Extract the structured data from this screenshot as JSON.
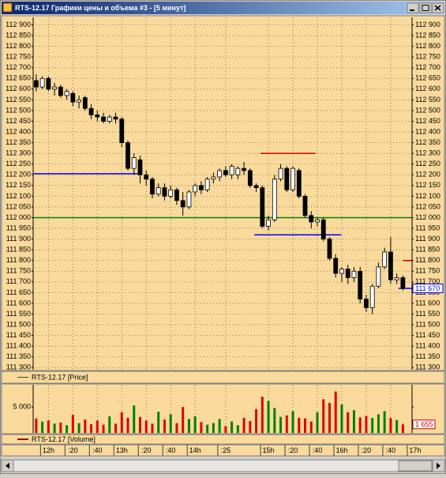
{
  "window": {
    "title": "RTS-12.17 Графики цены и объема #3 - [5 минут]"
  },
  "chart_data": [
    {
      "type": "candlestick",
      "legend": "RTS-12.17 [Price]",
      "open": [
        112640,
        112610,
        112650,
        112600,
        112610,
        112570,
        112580,
        112540,
        112560,
        112510,
        112480,
        112470,
        112450,
        112470,
        112460,
        112350,
        112230,
        112270,
        112200,
        112180,
        112110,
        112140,
        112100,
        112130,
        112080,
        112050,
        112120,
        112150,
        112130,
        112180,
        112190,
        112220,
        112200,
        112200,
        112230,
        112220,
        112150,
        112140,
        111960,
        111990,
        112180,
        112230,
        112130,
        112220,
        112100,
        112010,
        111980,
        111990,
        111900,
        111810,
        111740,
        111760,
        111720,
        111750,
        111620,
        111580,
        111680,
        111770,
        111840,
        111710,
        111720
      ],
      "high": [
        112670,
        112660,
        112660,
        112630,
        112620,
        112600,
        112590,
        112570,
        112570,
        112530,
        112500,
        112490,
        112480,
        112490,
        112470,
        112360,
        112300,
        112290,
        112220,
        112190,
        112160,
        112160,
        112150,
        112140,
        112120,
        112130,
        112160,
        112170,
        112190,
        112210,
        112230,
        112240,
        112250,
        112240,
        112260,
        112230,
        112160,
        112150,
        112010,
        112200,
        112250,
        112240,
        112240,
        112230,
        112110,
        112030,
        112000,
        112000,
        111910,
        111830,
        111770,
        111780,
        111770,
        111770,
        111640,
        111690,
        111790,
        111860,
        111910,
        111740,
        111730
      ],
      "low": [
        112590,
        112600,
        112590,
        112570,
        112560,
        112550,
        112520,
        112510,
        112500,
        112460,
        112450,
        112440,
        112440,
        112440,
        112330,
        112220,
        112200,
        112160,
        112150,
        112090,
        112100,
        112080,
        112090,
        112060,
        112010,
        112040,
        112100,
        112110,
        112120,
        112160,
        112170,
        112190,
        112180,
        112180,
        112200,
        112140,
        112120,
        111950,
        111940,
        111980,
        112170,
        112120,
        112120,
        112090,
        112000,
        111950,
        111960,
        111890,
        111800,
        111720,
        111700,
        111690,
        111700,
        111600,
        111560,
        111550,
        111670,
        111760,
        111690,
        111690,
        111660
      ],
      "close": [
        112610,
        112650,
        112600,
        112610,
        112570,
        112590,
        112540,
        112550,
        112510,
        112480,
        112470,
        112450,
        112470,
        112460,
        112350,
        112230,
        112280,
        112200,
        112180,
        112110,
        112140,
        112100,
        112130,
        112080,
        112050,
        112120,
        112150,
        112130,
        112180,
        112190,
        112220,
        112200,
        112240,
        112230,
        112220,
        112150,
        112140,
        111960,
        111990,
        112180,
        112230,
        112130,
        112230,
        112100,
        112010,
        111980,
        111990,
        111900,
        111810,
        111740,
        111760,
        111720,
        111750,
        111620,
        111580,
        111680,
        111770,
        111840,
        111710,
        111720,
        111670
      ],
      "up_color": "#ffffff",
      "down_color": "#000000",
      "background": "#f9da9c",
      "xlim": [
        -0.5,
        61.5
      ],
      "ylim": [
        111290,
        112935
      ],
      "yticks": [
        {
          "value": 111300,
          "label": "111 300"
        },
        {
          "value": 111350,
          "label": "111 350"
        },
        {
          "value": 111400,
          "label": "111 400"
        },
        {
          "value": 111450,
          "label": "111 450"
        },
        {
          "value": 111500,
          "label": "111 500"
        },
        {
          "value": 111550,
          "label": "111 550"
        },
        {
          "value": 111600,
          "label": "111 600"
        },
        {
          "value": 111650,
          "label": "111 650"
        },
        {
          "value": 111700,
          "label": "111 700"
        },
        {
          "value": 111750,
          "label": "111 750"
        },
        {
          "value": 111800,
          "label": "111 800"
        },
        {
          "value": 111850,
          "label": "111 850"
        },
        {
          "value": 111900,
          "label": "111 900"
        },
        {
          "value": 111950,
          "label": "111 950"
        },
        {
          "value": 112000,
          "label": "112 000"
        },
        {
          "value": 112050,
          "label": "112 050"
        },
        {
          "value": 112100,
          "label": "112 100"
        },
        {
          "value": 112150,
          "label": "112 150"
        },
        {
          "value": 112200,
          "label": "112 200"
        },
        {
          "value": 112250,
          "label": "112 250"
        },
        {
          "value": 112300,
          "label": "112 300"
        },
        {
          "value": 112350,
          "label": "112 350"
        },
        {
          "value": 112400,
          "label": "112 400"
        },
        {
          "value": 112450,
          "label": "112 450"
        },
        {
          "value": 112500,
          "label": "112 500"
        },
        {
          "value": 112550,
          "label": "112 550"
        },
        {
          "value": 112600,
          "label": "112 600"
        },
        {
          "value": 112650,
          "label": "112 650"
        },
        {
          "value": 112700,
          "label": "112 700"
        },
        {
          "value": 112750,
          "label": "112 750"
        },
        {
          "value": 112800,
          "label": "112 800"
        },
        {
          "value": 112850,
          "label": "112 850"
        },
        {
          "value": 112900,
          "label": "112 900"
        }
      ],
      "xticks": [
        {
          "value": 2,
          "label": "12h"
        },
        {
          "value": 6,
          "label": ":20"
        },
        {
          "value": 10,
          "label": ":40"
        },
        {
          "value": 14,
          "label": "13h"
        },
        {
          "value": 18,
          "label": ":20"
        },
        {
          "value": 22,
          "label": ":40"
        },
        {
          "value": 26,
          "label": "14h"
        },
        {
          "value": 31,
          "label": ":25"
        },
        {
          "value": 38,
          "label": "15h"
        },
        {
          "value": 42,
          "label": ":20"
        },
        {
          "value": 46,
          "label": ":40"
        },
        {
          "value": 50,
          "label": "16h"
        },
        {
          "value": 54,
          "label": ":20"
        },
        {
          "value": 58,
          "label": ":40"
        },
        {
          "value": 62,
          "label": "17h"
        }
      ],
      "grid": true,
      "levels": [
        {
          "value": 112205,
          "color": "#0000ff",
          "from": -0.5,
          "to": 17.3
        },
        {
          "value": 112000,
          "color": "#008000",
          "from": -0.5,
          "to": 61.5
        },
        {
          "value": 112300,
          "color": "#cc0000",
          "from": 36.7,
          "to": 45.7
        },
        {
          "value": 111920,
          "color": "#0000ff",
          "from": 35.7,
          "to": 49.9
        },
        {
          "value": 111800,
          "color": "#cc0000",
          "from": 60,
          "to": 61.5
        },
        {
          "value": 111670,
          "color": "#0000ff",
          "from": 59.3,
          "to": 61.5
        }
      ],
      "last_label": "111 670",
      "last_label_color": "#0000ff"
    },
    {
      "type": "bar",
      "legend": "RTS-12.17 [Volume]",
      "legend_color": "#990000",
      "values": [
        2800,
        2200,
        2400,
        1800,
        2000,
        1500,
        3500,
        1900,
        2600,
        1700,
        2400,
        1600,
        3200,
        1800,
        4000,
        2900,
        5300,
        3100,
        2400,
        1800,
        4100,
        2600,
        3600,
        1900,
        5000,
        2700,
        3200,
        2100,
        1600,
        1900,
        2700,
        1300,
        2200,
        1500,
        2900,
        2300,
        4600,
        7000,
        6200,
        4800,
        3100,
        3400,
        4200,
        2900,
        2800,
        2200,
        4000,
        6500,
        5800,
        8000,
        5500,
        4000,
        4400,
        3000,
        3300,
        2900,
        3600,
        4200,
        2900,
        2500,
        1655
      ],
      "value_labels": [
        null,
        null,
        null,
        null,
        null,
        null,
        null,
        null,
        null,
        null,
        null,
        null,
        null,
        null,
        null,
        null,
        null,
        null,
        null,
        null,
        null,
        null,
        null,
        null,
        null,
        null,
        null,
        null,
        null,
        null,
        null,
        null,
        null,
        null,
        null,
        null,
        null,
        null,
        null,
        null,
        null,
        null,
        null,
        null,
        null,
        null,
        null,
        null,
        null,
        null,
        null,
        null,
        null,
        null,
        null,
        null,
        null,
        null,
        null,
        null,
        "1 655"
      ],
      "up_color": "#008000",
      "down_color": "#e00000",
      "label_color": "#cc0000",
      "xlim": [
        -0.5,
        61.5
      ],
      "ylim": [
        0,
        9300
      ],
      "yticks": [
        {
          "value": 5000,
          "label": "5 000"
        }
      ]
    }
  ]
}
